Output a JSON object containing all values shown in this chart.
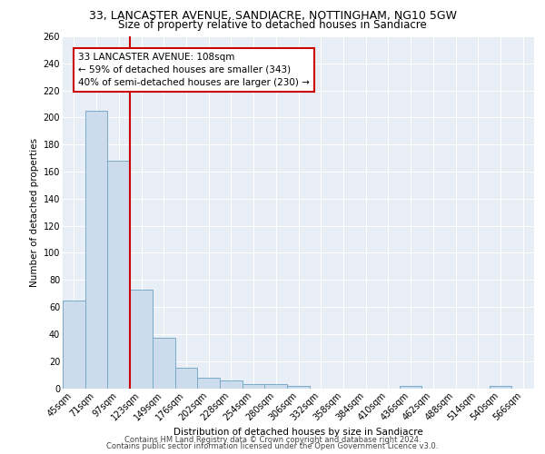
{
  "title_line1": "33, LANCASTER AVENUE, SANDIACRE, NOTTINGHAM, NG10 5GW",
  "title_line2": "Size of property relative to detached houses in Sandiacre",
  "xlabel": "Distribution of detached houses by size in Sandiacre",
  "ylabel": "Number of detached properties",
  "categories": [
    "45sqm",
    "71sqm",
    "97sqm",
    "123sqm",
    "149sqm",
    "176sqm",
    "202sqm",
    "228sqm",
    "254sqm",
    "280sqm",
    "306sqm",
    "332sqm",
    "358sqm",
    "384sqm",
    "410sqm",
    "436sqm",
    "462sqm",
    "488sqm",
    "514sqm",
    "540sqm",
    "566sqm"
  ],
  "values": [
    65,
    205,
    168,
    73,
    37,
    15,
    8,
    6,
    3,
    3,
    2,
    0,
    0,
    0,
    0,
    2,
    0,
    0,
    0,
    2,
    0
  ],
  "bar_color": "#ccdcec",
  "bar_edge_color": "#7aaac8",
  "vline_index": 2,
  "vline_color": "#cc0000",
  "annotation_text": "33 LANCASTER AVENUE: 108sqm\n← 59% of detached houses are smaller (343)\n40% of semi-detached houses are larger (230) →",
  "annotation_box_color": "white",
  "annotation_box_edge_color": "#cc0000",
  "ylim": [
    0,
    260
  ],
  "yticks": [
    0,
    20,
    40,
    60,
    80,
    100,
    120,
    140,
    160,
    180,
    200,
    220,
    240,
    260
  ],
  "footer_line1": "Contains HM Land Registry data © Crown copyright and database right 2024.",
  "footer_line2": "Contains public sector information licensed under the Open Government Licence v3.0.",
  "plot_bg_color": "#e8eef5",
  "grid_color": "#ffffff",
  "title_fontsize": 9,
  "subtitle_fontsize": 8.5,
  "xlabel_fontsize": 7.5,
  "ylabel_fontsize": 7.5,
  "tick_fontsize": 7,
  "annot_fontsize": 7.5,
  "footer_fontsize": 6
}
